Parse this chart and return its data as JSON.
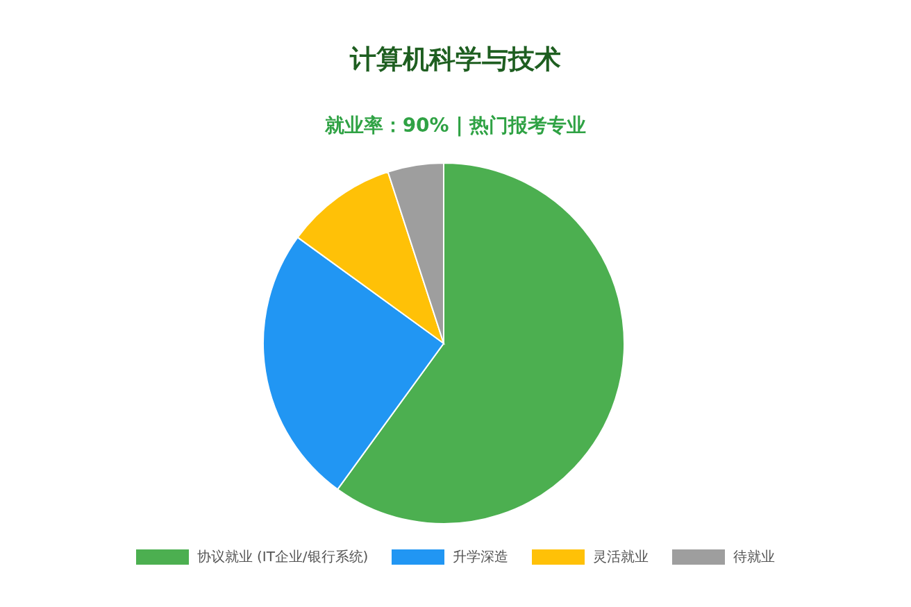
{
  "chart_data": {
    "type": "pie",
    "title": "计算机科学与技术",
    "subtitle": "就业率：90% | 热门报考专业",
    "categories": [
      "协议就业 (IT企业/银行系统)",
      "升学深造",
      "灵活就业",
      "待就业"
    ],
    "values": [
      60,
      25,
      10,
      5
    ],
    "colors": [
      "#4caf50",
      "#2196f3",
      "#ffc107",
      "#9e9e9e"
    ],
    "legend": "bottom"
  }
}
